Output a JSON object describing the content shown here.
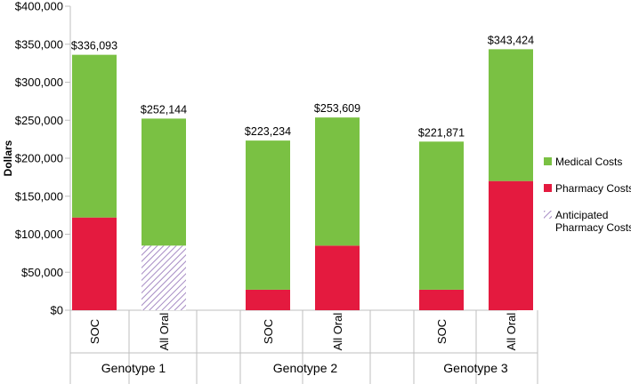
{
  "chart_data": {
    "type": "bar",
    "stacked": true,
    "ylabel": "Dollars",
    "ylim": [
      0,
      400000
    ],
    "y_ticks": [
      "$0",
      "$50,000",
      "$100,000",
      "$150,000",
      "$200,000",
      "$250,000",
      "$300,000",
      "$350,000",
      "$400,000"
    ],
    "groups": [
      {
        "name": "Genotype 1",
        "bars": [
          {
            "label": "SOC",
            "total_label": "$336,093",
            "pharmacy": 122000,
            "anticipated": 0,
            "medical": 214093
          },
          {
            "label": "All Oral",
            "total_label": "$252,144",
            "pharmacy": 0,
            "anticipated": 85000,
            "medical": 167144
          }
        ]
      },
      {
        "name": "Genotype 2",
        "bars": [
          {
            "label": "SOC",
            "total_label": "$223,234",
            "pharmacy": 27000,
            "anticipated": 0,
            "medical": 196234
          },
          {
            "label": "All Oral",
            "total_label": "$253,609",
            "pharmacy": 85000,
            "anticipated": 0,
            "medical": 168609
          }
        ]
      },
      {
        "name": "Genotype 3",
        "bars": [
          {
            "label": "SOC",
            "total_label": "$221,871",
            "pharmacy": 27000,
            "anticipated": 0,
            "medical": 194871
          },
          {
            "label": "All Oral",
            "total_label": "$343,424",
            "pharmacy": 170000,
            "anticipated": 0,
            "medical": 173424
          }
        ]
      }
    ],
    "legend": [
      {
        "key": "medical",
        "label": "Medical Costs"
      },
      {
        "key": "pharmacy",
        "label": "Pharmacy Costs"
      },
      {
        "key": "anticipated",
        "label": "Anticipated Pharmacy Costs",
        "lines": [
          "Anticipated",
          "Pharmacy Costs"
        ]
      }
    ],
    "colors": {
      "medical": "#7ac143",
      "pharmacy": "#e41a3f",
      "anticipated_stripe": "#a68bc4",
      "axis": "#bfbfbf"
    },
    "legend_position": "right"
  }
}
